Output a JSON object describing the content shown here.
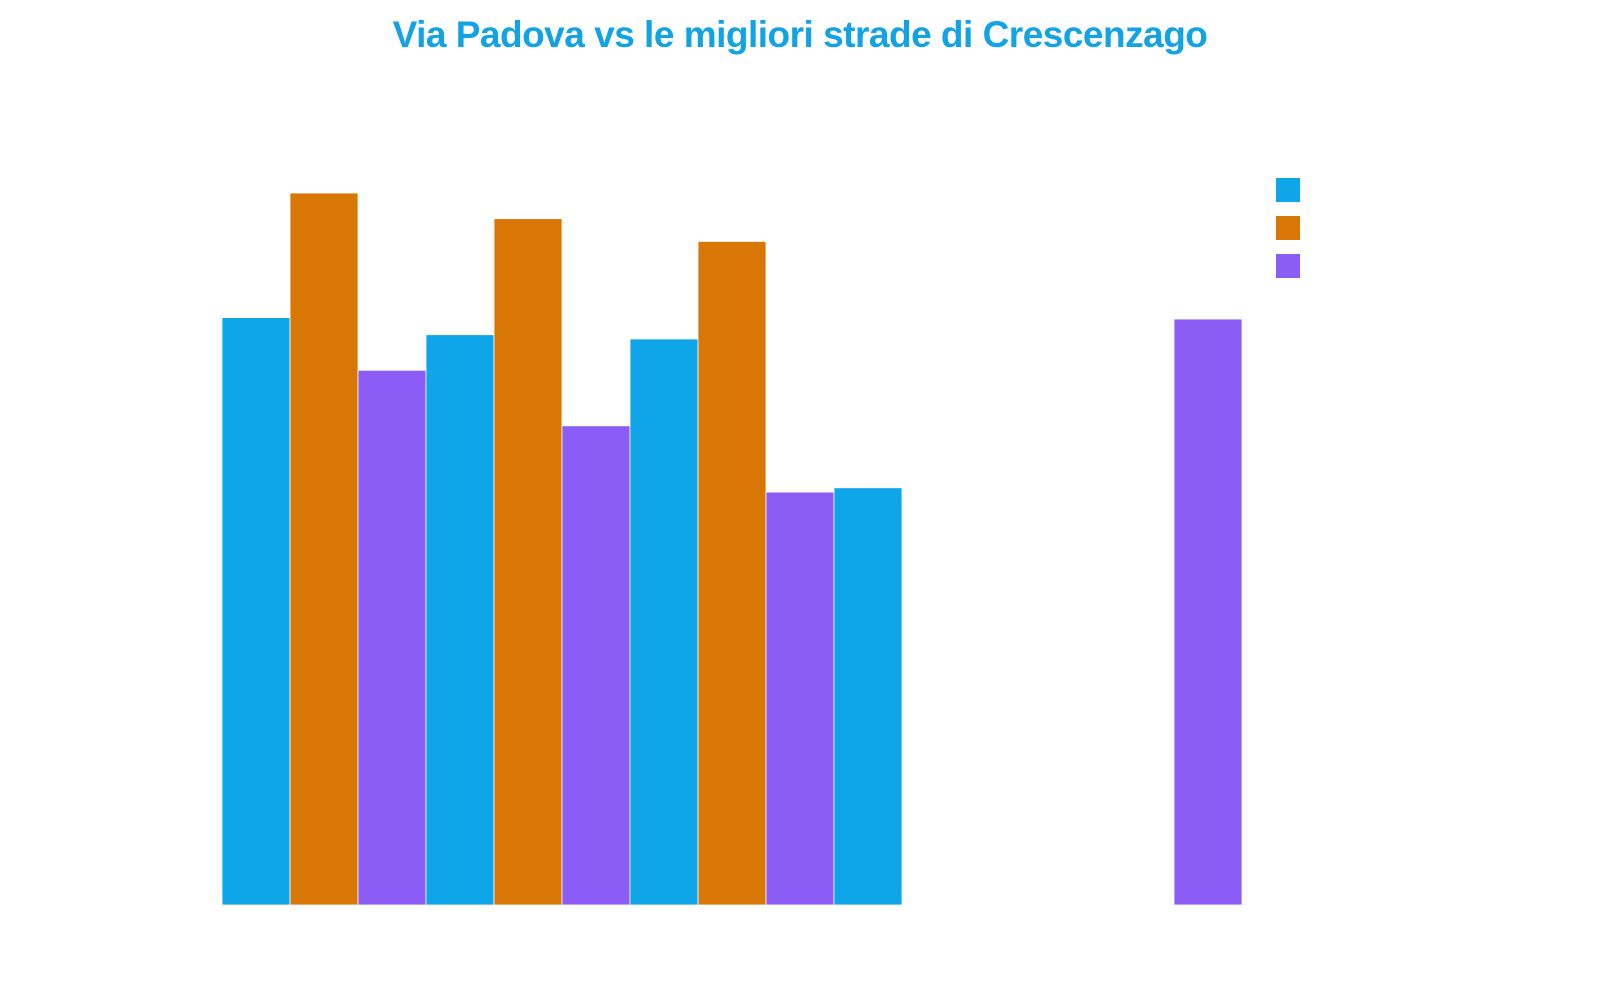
{
  "chart_data": {
    "type": "bar",
    "title": "Via Padova vs le migliori strade di Crescenzago",
    "xlabel": "",
    "ylabel": "",
    "categories": [
      "",
      "",
      "",
      "",
      ""
    ],
    "ylim": [
      0,
      100
    ],
    "grid": false,
    "legend_position": "top-right",
    "colors": {
      "title": "#12a2e6",
      "series": [
        "#0ea5e9",
        "#d97706",
        "#8b5cf6"
      ]
    },
    "series": [
      {
        "name": "",
        "values": [
          82.5,
          80.1,
          79.5,
          58.6,
          null
        ]
      },
      {
        "name": "",
        "values": [
          100,
          96.4,
          93.2,
          null,
          null
        ]
      },
      {
        "name": "",
        "values": [
          75.1,
          67.3,
          58.0,
          null,
          82.3
        ]
      }
    ]
  }
}
